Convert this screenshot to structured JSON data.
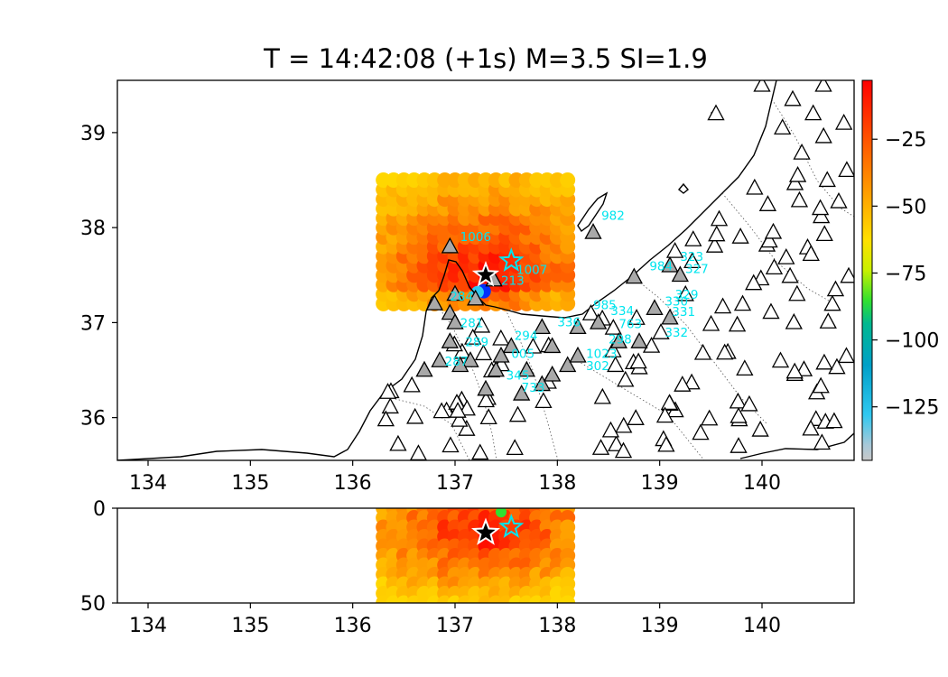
{
  "title": "T = 14:42:08 (+1s) M=3.5 SI=1.9",
  "map": {
    "xlim": [
      133.7,
      140.9
    ],
    "ylim": [
      35.55,
      39.55
    ],
    "x_ticks": [
      "134",
      "135",
      "136",
      "137",
      "138",
      "139",
      "140"
    ],
    "y_ticks": [
      "36",
      "37",
      "38",
      "39"
    ]
  },
  "section": {
    "xlim": [
      133.7,
      140.9
    ],
    "ylim": [
      50,
      0
    ],
    "x_ticks": [
      "134",
      "135",
      "136",
      "137",
      "138",
      "139",
      "140"
    ],
    "y_ticks": [
      "0",
      "50"
    ]
  },
  "colorbar": {
    "range": [
      -145,
      -3
    ],
    "ticks": [
      "−25",
      "−50",
      "−75",
      "−100",
      "−125"
    ],
    "tick_values": [
      -25,
      -50,
      -75,
      -100,
      -125
    ]
  },
  "grid": {
    "lon_range": [
      136.3,
      138.1
    ],
    "lat_range": [
      37.2,
      38.5
    ]
  },
  "epicenter": {
    "lon": 137.3,
    "lat": 37.5,
    "depth_km": 13
  },
  "hypocenter_estimate": {
    "lon": 137.55,
    "lat": 37.65,
    "depth_km": 10
  },
  "station_labels": [
    {
      "text": "1006",
      "lon": 137.05,
      "lat": 37.86
    },
    {
      "text": "982",
      "lon": 138.43,
      "lat": 38.08
    },
    {
      "text": "1007",
      "lon": 137.6,
      "lat": 37.51
    },
    {
      "text": "984",
      "lon": 138.9,
      "lat": 37.55
    },
    {
      "text": "323",
      "lon": 139.2,
      "lat": 37.65
    },
    {
      "text": "327",
      "lon": 139.25,
      "lat": 37.52
    },
    {
      "text": "329",
      "lon": 139.15,
      "lat": 37.25
    },
    {
      "text": "330",
      "lon": 139.05,
      "lat": 37.18
    },
    {
      "text": "331",
      "lon": 139.12,
      "lat": 37.07
    },
    {
      "text": "334",
      "lon": 138.52,
      "lat": 37.08
    },
    {
      "text": "985",
      "lon": 138.35,
      "lat": 37.14
    },
    {
      "text": "336",
      "lon": 138.0,
      "lat": 36.96
    },
    {
      "text": "763",
      "lon": 138.6,
      "lat": 36.94
    },
    {
      "text": "332",
      "lon": 139.05,
      "lat": 36.85
    },
    {
      "text": "298",
      "lon": 138.5,
      "lat": 36.78
    },
    {
      "text": "294",
      "lon": 137.58,
      "lat": 36.82
    },
    {
      "text": "005",
      "lon": 137.55,
      "lat": 36.63
    },
    {
      "text": "1023",
      "lon": 138.28,
      "lat": 36.63
    },
    {
      "text": "287",
      "lon": 136.9,
      "lat": 36.55
    },
    {
      "text": "345",
      "lon": 137.5,
      "lat": 36.4
    },
    {
      "text": "302",
      "lon": 138.28,
      "lat": 36.5
    },
    {
      "text": "733",
      "lon": 137.65,
      "lat": 36.27
    },
    {
      "text": "284",
      "lon": 136.95,
      "lat": 37.23
    },
    {
      "text": "281",
      "lon": 137.05,
      "lat": 36.95
    },
    {
      "text": "289",
      "lon": 137.1,
      "lat": 36.75
    },
    {
      "text": "213",
      "lon": 137.45,
      "lat": 37.4
    }
  ]
}
